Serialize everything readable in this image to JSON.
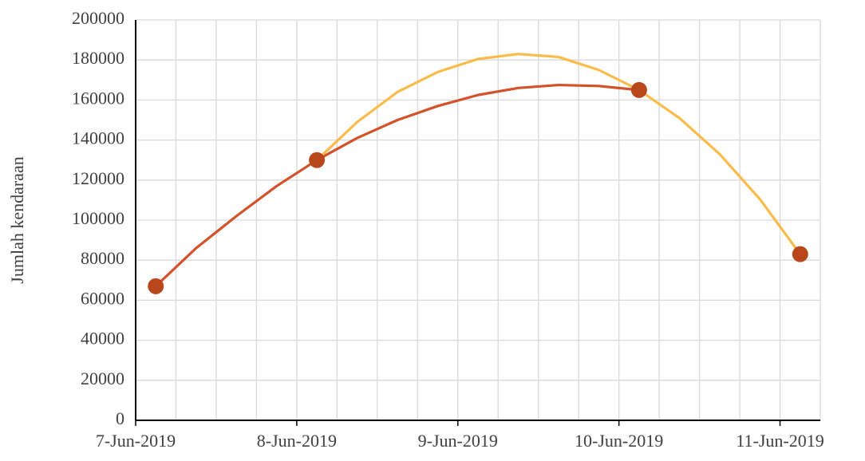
{
  "chart_data": {
    "type": "line",
    "y_label": "Jumlah kendaraan",
    "xlim": [
      0,
      4.25
    ],
    "xticks": [
      {
        "value": 0,
        "label": "7-Jun-2019"
      },
      {
        "value": 1,
        "label": "8-Jun-2019"
      },
      {
        "value": 2,
        "label": "9-Jun-2019"
      },
      {
        "value": 3,
        "label": "10-Jun-2019"
      },
      {
        "value": 4,
        "label": "11-Jun-2019"
      }
    ],
    "x_minor_divisions": 4,
    "ylim": [
      0,
      200000
    ],
    "yticks": [
      0,
      20000,
      40000,
      60000,
      80000,
      100000,
      120000,
      140000,
      160000,
      180000,
      200000
    ],
    "grid": true,
    "series": [
      {
        "color": "#d4522a",
        "line": true,
        "marker": false,
        "x": [
          0.125,
          0.375,
          0.625,
          0.875,
          1.125,
          1.375,
          1.625,
          1.875,
          2.125,
          2.375,
          2.625,
          2.875,
          3.125
        ],
        "values": [
          67000,
          86000,
          102000,
          117000,
          130000,
          141000,
          150000,
          157000,
          162500,
          166000,
          167500,
          167000,
          165000
        ]
      },
      {
        "color": "#f9bc4b",
        "line": true,
        "marker": false,
        "x": [
          1.125,
          1.375,
          1.625,
          1.875,
          2.125,
          2.375,
          2.625,
          2.875,
          3.125,
          3.375,
          3.625,
          3.875,
          4.125
        ],
        "values": [
          130000,
          149000,
          164000,
          174000,
          180500,
          183000,
          181500,
          175000,
          165000,
          151000,
          133000,
          110500,
          83000
        ]
      },
      {
        "color": "#b8471c",
        "line": false,
        "marker": true,
        "x": [
          0.125,
          1.125,
          3.125,
          4.125
        ],
        "values": [
          67000,
          130000,
          165000,
          83000
        ]
      }
    ]
  }
}
